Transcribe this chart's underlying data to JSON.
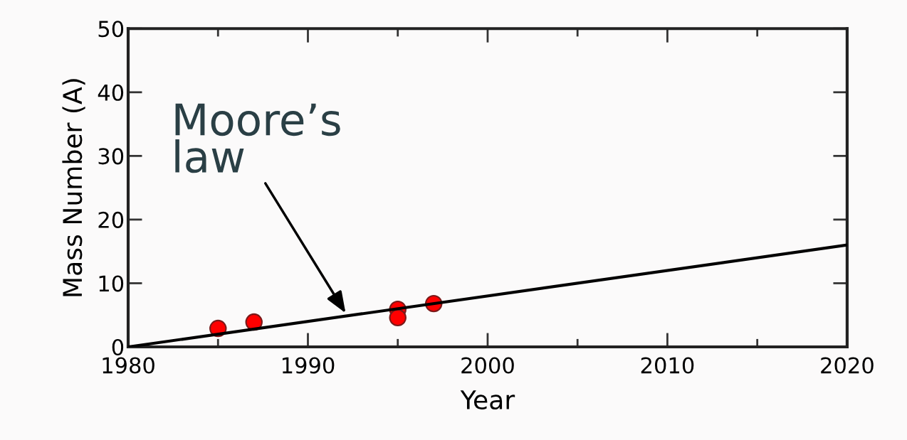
{
  "chart_data": {
    "type": "scatter",
    "xlabel": "Year",
    "ylabel": "Mass Number (A)",
    "xlim": [
      1980,
      2020
    ],
    "ylim": [
      0,
      50
    ],
    "xticks": [
      1980,
      {
        "value": 1985,
        "label": null
      },
      1990,
      {
        "value": 1995,
        "label": null
      },
      2000,
      {
        "value": 2005,
        "label": null
      },
      2010,
      {
        "value": 2015,
        "label": null
      },
      2020
    ],
    "yticks": [
      0,
      10,
      20,
      30,
      40,
      50
    ],
    "grid": false,
    "series": [
      {
        "marker": "circle",
        "color": "#ff0000",
        "x": [
          1985,
          1987,
          1995,
          1995,
          1997
        ],
        "values": [
          2.9,
          3.9,
          5.9,
          4.6,
          6.8
        ]
      },
      {
        "type": "line",
        "marker": "none",
        "color": "#000000",
        "x": [
          1980,
          2020
        ],
        "values": [
          0,
          16
        ]
      }
    ],
    "annotations": [
      {
        "text": "Moore’s\nlaw",
        "x": 1992.1,
        "y": 5.3
      }
    ]
  }
}
